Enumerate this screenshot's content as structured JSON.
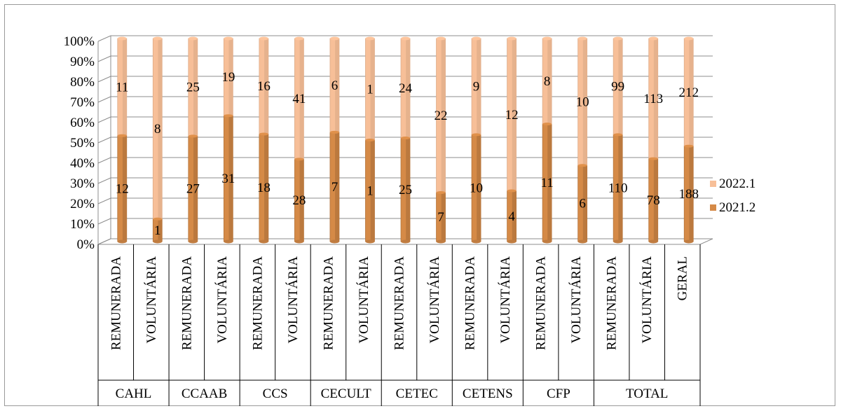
{
  "chart_data": {
    "type": "bar",
    "stacked": "percent",
    "title": "",
    "xlabel": "",
    "ylabel": "",
    "ylim": [
      0,
      100
    ],
    "y_ticks": [
      "0%",
      "10%",
      "20%",
      "30%",
      "40%",
      "50%",
      "60%",
      "70%",
      "80%",
      "90%",
      "100%"
    ],
    "categories": [
      "REMUNERADA",
      "VOLUNTÁRIA",
      "REMUNERADA",
      "VOLUNTÁRIA",
      "REMUNERADA",
      "VOLUNTÁRIA",
      "REMUNERADA",
      "VOLUNTÁRIA",
      "REMUNERADA",
      "VOLUNTÁRIA",
      "REMUNERADA",
      "VOLUNTÁRIA",
      "REMUNERADA",
      "VOLUNTÁRIA",
      "REMUNERADA",
      "VOLUNTÁRIA",
      "GERAL"
    ],
    "groups": [
      {
        "label": "CAHL",
        "span": 2
      },
      {
        "label": "CCAAB",
        "span": 2
      },
      {
        "label": "CCS",
        "span": 2
      },
      {
        "label": "CECULT",
        "span": 2
      },
      {
        "label": "CETEC",
        "span": 2
      },
      {
        "label": "CETENS",
        "span": 2
      },
      {
        "label": "CFP",
        "span": 2
      },
      {
        "label": "TOTAL",
        "span": 3
      }
    ],
    "series": [
      {
        "name": "2021.2",
        "color": "#d58a47",
        "values": [
          12,
          1,
          27,
          31,
          18,
          28,
          7,
          1,
          25,
          7,
          10,
          4,
          11,
          6,
          110,
          78,
          188
        ]
      },
      {
        "name": "2022.1",
        "color": "#f7bf98",
        "values": [
          11,
          8,
          25,
          19,
          16,
          41,
          6,
          1,
          24,
          22,
          9,
          12,
          8,
          10,
          99,
          113,
          212
        ]
      }
    ],
    "legend": "right",
    "grid": true
  }
}
